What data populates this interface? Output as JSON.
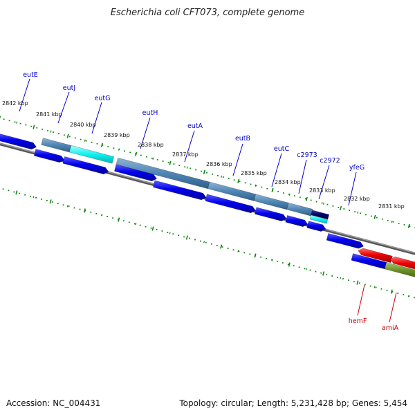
{
  "title": "Escherichia coli CFT073, complete genome",
  "footer": {
    "accession": "Accession: NC_004431",
    "topology": "Topology: circular; Length: 5,231,428 bp; Genes: 5,454"
  },
  "colors": {
    "forward_label": "#0000cc",
    "reverse_label": "#cc0000",
    "cds_blue": "#0000ee",
    "gene_steel": "#4f86b5",
    "gene_cyan": "#11f0f0",
    "gene_navy": "#000066",
    "cds_red": "#ee0000",
    "gene_olive": "#6b8e23",
    "backbone": "#777777",
    "ticks": "#118811"
  },
  "scale": {
    "kbp_labels": [
      "2842 kbp",
      "2841 kbp",
      "2840 kbp",
      "2839 kbp",
      "2838 kbp",
      "2837 kbp",
      "2836 kbp",
      "2835 kbp",
      "2834 kbp",
      "2833 kbp",
      "2832 kbp",
      "2831 kbp"
    ]
  },
  "forward_genes": [
    "eutE",
    "eutJ",
    "eutG",
    "eutH",
    "eutA",
    "eutB",
    "eutC",
    "c2973",
    "c2972",
    "yfeG"
  ],
  "reverse_genes": [
    "hemF",
    "amiA"
  ]
}
